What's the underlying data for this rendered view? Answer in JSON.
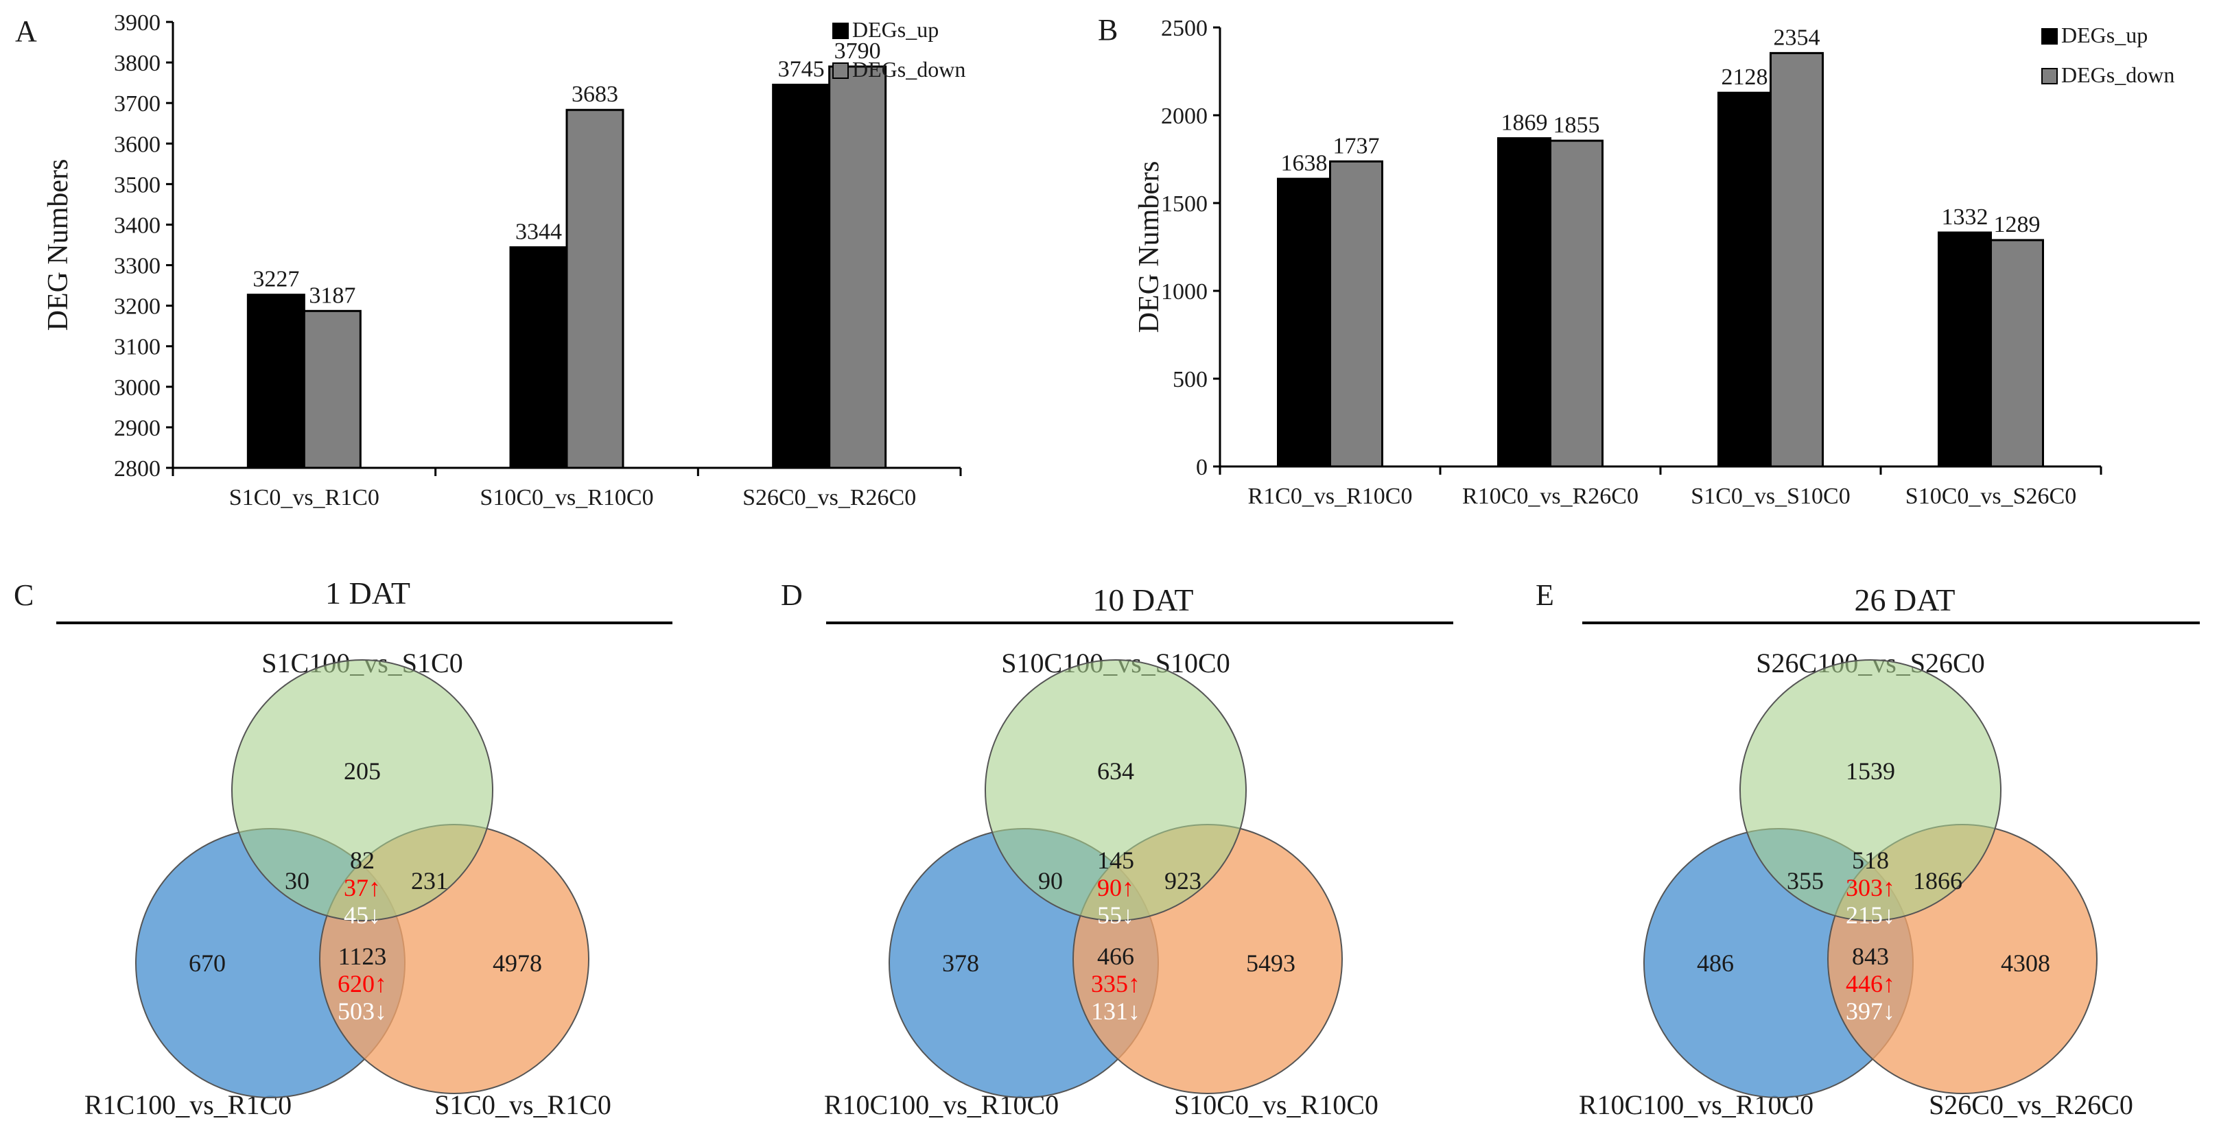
{
  "colors": {
    "up": "#000000",
    "down": "#808080",
    "green": "#a9d18e",
    "blue": "#5b9bd5",
    "orange": "#f4a46a",
    "red_text": "#ff0000",
    "white_text": "#ffffff"
  },
  "chart_data": [
    {
      "panel": "A",
      "type": "bar",
      "ylabel": "DEG Numbers",
      "ylim": [
        2800,
        3900
      ],
      "yticks": [
        2800,
        2900,
        3000,
        3100,
        3200,
        3300,
        3400,
        3500,
        3600,
        3700,
        3800,
        3900
      ],
      "categories": [
        "S1C0_vs_R1C0",
        "S10C0_vs_R10C0",
        "S26C0_vs_R26C0"
      ],
      "series": [
        {
          "name": "DEGs_up",
          "values": [
            3227,
            3344,
            3745
          ]
        },
        {
          "name": "DEGs_down",
          "values": [
            3187,
            3683,
            3790
          ]
        }
      ],
      "legend": "top-right"
    },
    {
      "panel": "B",
      "type": "bar",
      "ylabel": "DEG Numbers",
      "ylim": [
        0,
        2500
      ],
      "yticks": [
        0,
        500,
        1000,
        1500,
        2000,
        2500
      ],
      "categories": [
        "R1C0_vs_R10C0",
        "R10C0_vs_R26C0",
        "S1C0_vs_S10C0",
        "S10C0_vs_S26C0"
      ],
      "series": [
        {
          "name": "DEGs_up",
          "values": [
            1638,
            1869,
            2128,
            1332
          ]
        },
        {
          "name": "DEGs_down",
          "values": [
            1737,
            1855,
            2354,
            1289
          ]
        }
      ],
      "legend": "top-right"
    }
  ],
  "venns": [
    {
      "panel": "C",
      "title": "1 DAT",
      "labels": {
        "top": "S1C100_vs_S1C0",
        "left": "R1C100_vs_R1C0",
        "right": "S1C0_vs_R1C0"
      },
      "only_top": "205",
      "only_left": "670",
      "only_right": "4978",
      "top_left": "30",
      "top_right": "231",
      "center": {
        "total": "82",
        "up": "37↑",
        "down": "45↓"
      },
      "left_right": {
        "total": "1123",
        "up": "620↑",
        "down": "503↓"
      }
    },
    {
      "panel": "D",
      "title": "10 DAT",
      "labels": {
        "top": "S10C100_vs_S10C0",
        "left": "R10C100_vs_R10C0",
        "right": "S10C0_vs_R10C0"
      },
      "only_top": "634",
      "only_left": "378",
      "only_right": "5493",
      "top_left": "90",
      "top_right": "923",
      "center": {
        "total": "145",
        "up": "90↑",
        "down": "55↓"
      },
      "left_right": {
        "total": "466",
        "up": "335↑",
        "down": "131↓"
      }
    },
    {
      "panel": "E",
      "title": "26 DAT",
      "labels": {
        "top": "S26C100_vs_S26C0",
        "left": "R10C100_vs_R10C0",
        "right": "S26C0_vs_R26C0"
      },
      "only_top": "1539",
      "only_left": "486",
      "only_right": "4308",
      "top_left": "355",
      "top_right": "1866",
      "center": {
        "total": "518",
        "up": "303↑",
        "down": "215↓"
      },
      "left_right": {
        "total": "843",
        "up": "446↑",
        "down": "397↓"
      }
    }
  ]
}
